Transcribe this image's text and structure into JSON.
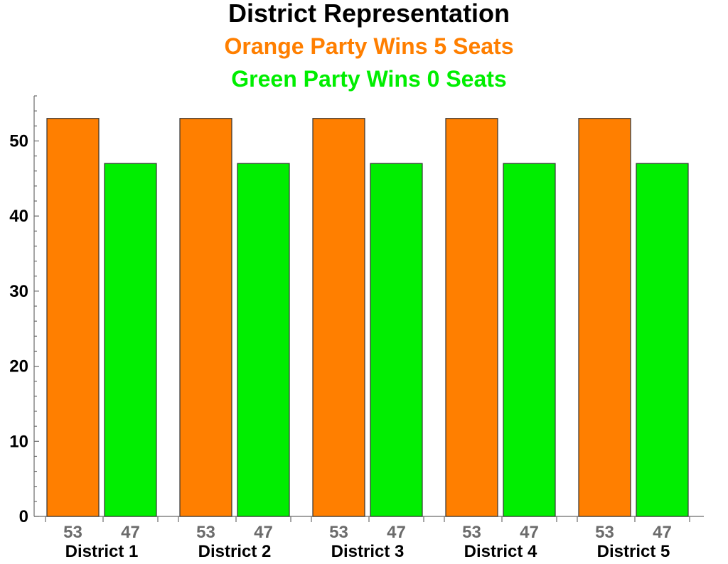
{
  "chart_data": {
    "type": "bar",
    "title": "District Representation",
    "subtitles": [
      {
        "text": "Orange Party Wins 5 Seats",
        "color": "#ff7f00"
      },
      {
        "text": "Green Party Wins 0 Seats",
        "color": "#00ee00"
      }
    ],
    "categories": [
      "District 1",
      "District 2",
      "District 3",
      "District 4",
      "District 5"
    ],
    "series": [
      {
        "values": [
          53,
          53,
          53,
          53,
          53
        ],
        "color": "#ff7f00"
      },
      {
        "values": [
          47,
          47,
          47,
          47,
          47
        ],
        "color": "#00ee00"
      }
    ],
    "ylim": [
      0,
      56
    ],
    "yticks": [
      0,
      10,
      20,
      30,
      40,
      50
    ],
    "grid": false,
    "show_value_labels": true
  }
}
